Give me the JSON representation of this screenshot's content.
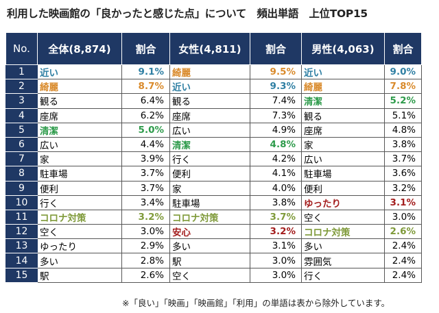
{
  "title": "利用した映画館の「良かったと感じた点」について　頻出単語　上位TOP15",
  "headers": [
    "No.",
    "全体(8,874)",
    "割合",
    "女性(4,811)",
    "割合",
    "男性(4,063)",
    "割合"
  ],
  "colors": {
    "header": "#1f3864",
    "blue": "#2f7fa3",
    "orange": "#d98a2b",
    "green": "#2e9b4b",
    "olive": "#7f9a3a",
    "red": "#a31d1d"
  },
  "rows": [
    {
      "no": "1",
      "c": [
        [
          "近い",
          "9.1%",
          "blue"
        ],
        [
          "綺麗",
          "9.5%",
          "orange"
        ],
        [
          "近い",
          "9.0%",
          "blue"
        ]
      ]
    },
    {
      "no": "2",
      "c": [
        [
          "綺麗",
          "8.7%",
          "orange"
        ],
        [
          "近い",
          "9.3%",
          "blue"
        ],
        [
          "綺麗",
          "7.8%",
          "orange"
        ]
      ]
    },
    {
      "no": "3",
      "c": [
        [
          "観る",
          "6.4%",
          ""
        ],
        [
          "観る",
          "7.4%",
          ""
        ],
        [
          "清潔",
          "5.2%",
          "green"
        ]
      ]
    },
    {
      "no": "4",
      "c": [
        [
          "座席",
          "6.2%",
          ""
        ],
        [
          "座席",
          "7.3%",
          ""
        ],
        [
          "観る",
          "5.1%",
          ""
        ]
      ]
    },
    {
      "no": "5",
      "c": [
        [
          "清潔",
          "5.0%",
          "green"
        ],
        [
          "広い",
          "4.9%",
          ""
        ],
        [
          "座席",
          "4.8%",
          ""
        ]
      ]
    },
    {
      "no": "6",
      "c": [
        [
          "広い",
          "4.4%",
          ""
        ],
        [
          "清潔",
          "4.8%",
          "green"
        ],
        [
          "家",
          "3.8%",
          ""
        ]
      ]
    },
    {
      "no": "7",
      "c": [
        [
          "家",
          "3.9%",
          ""
        ],
        [
          "行く",
          "4.2%",
          ""
        ],
        [
          "広い",
          "3.7%",
          ""
        ]
      ]
    },
    {
      "no": "8",
      "c": [
        [
          "駐車場",
          "3.7%",
          ""
        ],
        [
          "便利",
          "4.1%",
          ""
        ],
        [
          "駐車場",
          "3.6%",
          ""
        ]
      ]
    },
    {
      "no": "9",
      "c": [
        [
          "便利",
          "3.7%",
          ""
        ],
        [
          "家",
          "4.0%",
          ""
        ],
        [
          "便利",
          "3.2%",
          ""
        ]
      ]
    },
    {
      "no": "10",
      "c": [
        [
          "行く",
          "3.4%",
          ""
        ],
        [
          "駐車場",
          "3.8%",
          ""
        ],
        [
          "ゆったり",
          "3.1%",
          "red"
        ]
      ]
    },
    {
      "no": "11",
      "c": [
        [
          "コロナ対策",
          "3.2%",
          "olive"
        ],
        [
          "コロナ対策",
          "3.7%",
          "olive"
        ],
        [
          "空く",
          "3.0%",
          ""
        ]
      ]
    },
    {
      "no": "12",
      "c": [
        [
          "空く",
          "3.0%",
          ""
        ],
        [
          "安心",
          "3.2%",
          "red"
        ],
        [
          "コロナ対策",
          "2.6%",
          "olive"
        ]
      ]
    },
    {
      "no": "13",
      "c": [
        [
          "ゆったり",
          "2.9%",
          ""
        ],
        [
          "多い",
          "3.1%",
          ""
        ],
        [
          "多い",
          "2.4%",
          ""
        ]
      ]
    },
    {
      "no": "14",
      "c": [
        [
          "多い",
          "2.8%",
          ""
        ],
        [
          "駅",
          "3.0%",
          ""
        ],
        [
          "雰囲気",
          "2.4%",
          ""
        ]
      ]
    },
    {
      "no": "15",
      "c": [
        [
          "駅",
          "2.6%",
          ""
        ],
        [
          "空く",
          "3.0%",
          ""
        ],
        [
          "行く",
          "2.4%",
          ""
        ]
      ]
    }
  ],
  "note": "※「良い」「映画」「映画館」「利用」の単語は表から除外しています。"
}
